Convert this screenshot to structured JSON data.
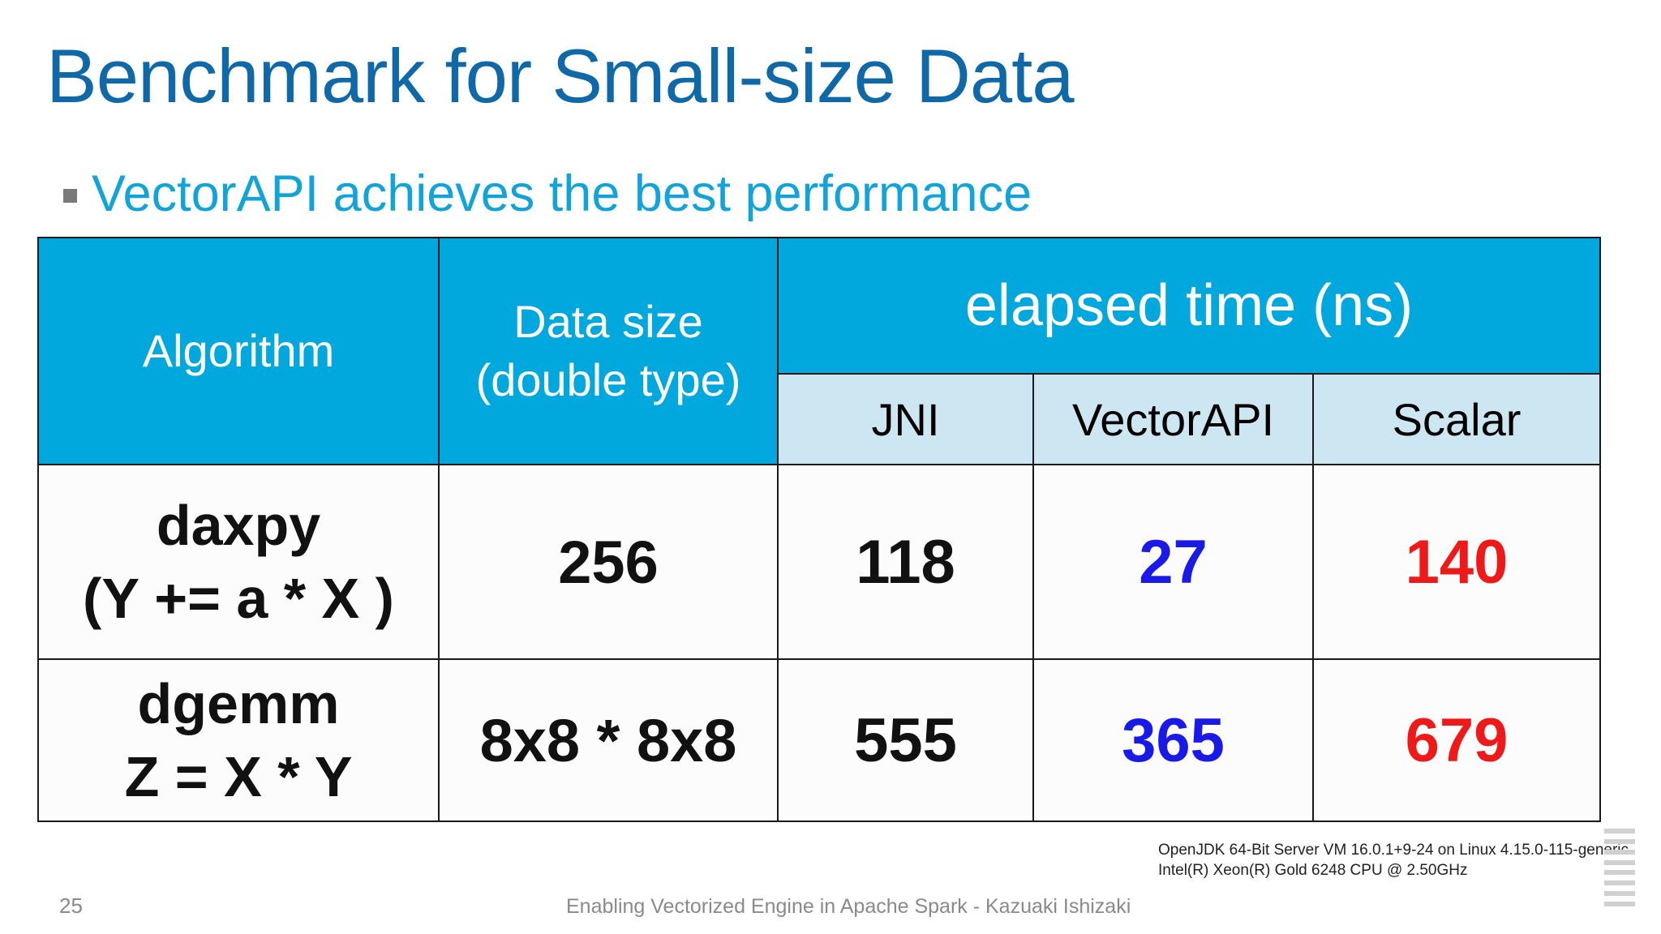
{
  "slide": {
    "title": "Benchmark for Small-size Data",
    "bullet": "VectorAPI achieves the best performance",
    "page_number": "25",
    "footer": "Enabling Vectorized Engine in Apache Spark - Kazuaki Ishizaki",
    "env_line1": "OpenJDK 64-Bit Server VM 16.0.1+9-24 on Linux 4.15.0-115-generic",
    "env_line2": "Intel(R) Xeon(R) Gold 6248 CPU @ 2.50GHz"
  },
  "table": {
    "headers": {
      "algorithm": "Algorithm",
      "data_size_line1": "Data size",
      "data_size_line2": "(double type)",
      "group": "elapsed time (ns)",
      "jni": "JNI",
      "vectorapi": "VectorAPI",
      "scalar": "Scalar"
    },
    "rows": [
      {
        "alg_line1": "daxpy",
        "alg_line2": "(Y += a * X )",
        "size": "256",
        "jni": "118",
        "vectorapi": "27",
        "scalar": "140"
      },
      {
        "alg_line1": "dgemm",
        "alg_line2": "Z = X * Y",
        "size": "8x8 * 8x8",
        "jni": "555",
        "vectorapi": "365",
        "scalar": "679"
      }
    ]
  },
  "colors": {
    "title": "#0f68a8",
    "bullet_text": "#12a3d8",
    "header_bg": "#00a8de",
    "subheader_bg": "#cde7f2",
    "vectorapi_value": "#1a1ae6",
    "scalar_value": "#ee1a1a"
  }
}
